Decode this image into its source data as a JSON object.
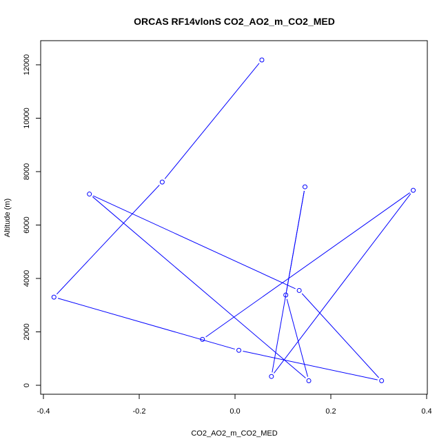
{
  "chart_data": {
    "type": "line",
    "title": "ORCAS RF14vlonS CO2_AO2_m_CO2_MED",
    "xlabel": "CO2_AO2_m_CO2_MED",
    "ylabel": "Altitude (m)",
    "xlim": [
      -0.4,
      0.4
    ],
    "ylim": [
      0,
      12000
    ],
    "xticks": [
      -0.4,
      -0.2,
      0.0,
      0.2,
      0.4
    ],
    "xtick_labels": [
      "-0.4",
      "-0.2",
      "0.0",
      "0.2",
      "0.4"
    ],
    "yticks": [
      0,
      2000,
      4000,
      6000,
      8000,
      10000,
      12000
    ],
    "ytick_labels": [
      "0",
      "2000",
      "4000",
      "6000",
      "8000",
      "10000",
      "12000"
    ],
    "grid": false,
    "color": "#0000ff",
    "series": [
      {
        "x": [
          0.056,
          -0.152,
          -0.378,
          0.008,
          0.306,
          0.134,
          -0.304,
          0.154,
          0.106,
          0.146,
          0.076,
          0.372,
          -0.068
        ],
        "y": [
          12180,
          7610,
          3300,
          1310,
          170,
          3550,
          7160,
          170,
          3380,
          7430,
          330,
          7300,
          1720
        ]
      }
    ]
  }
}
